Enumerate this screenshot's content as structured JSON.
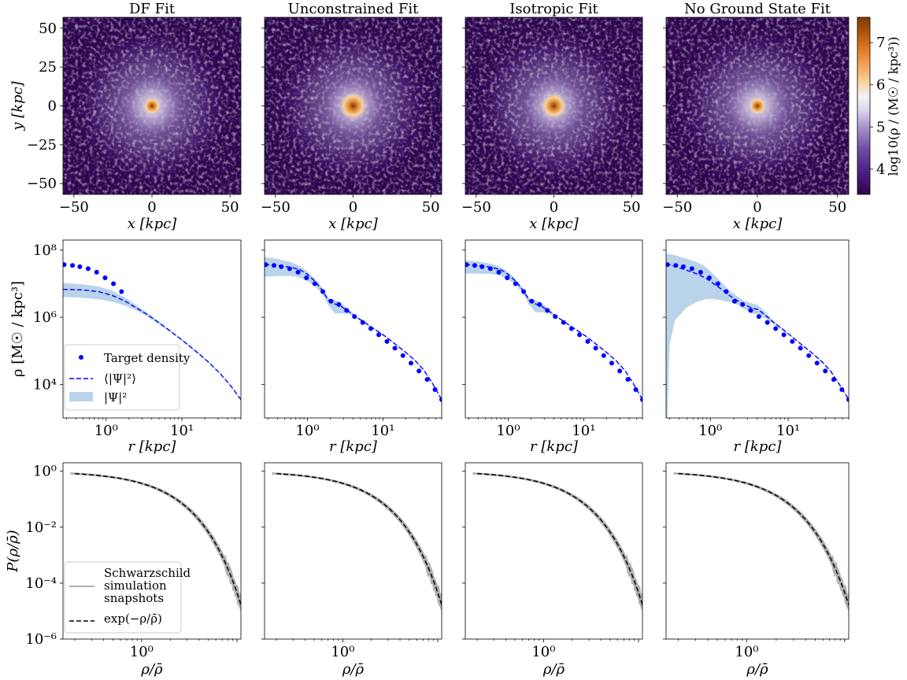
{
  "colors": {
    "target": "#0000ff",
    "mean_line": "#0000ff",
    "band": "#b9d3ea",
    "sim": "#b0b0b0",
    "exp_line": "#000000",
    "cmap": [
      "#2d0550",
      "#4b1d80",
      "#6f4ea6",
      "#a993c9",
      "#dcd7ea",
      "#f2f2f2",
      "#f7cf9b",
      "#f0a050",
      "#d8701a",
      "#a34e0c",
      "#7f3b08"
    ]
  },
  "panel_titles": [
    "DF Fit",
    "Unconstrained Fit",
    "Isotropic Fit",
    "No Ground State Fit"
  ],
  "chart_data": [
    {
      "type": "heatmap",
      "row": "density_maps",
      "titles": [
        "DF Fit",
        "Unconstrained Fit",
        "Isotropic Fit",
        "No Ground State Fit"
      ],
      "xlabel": "x [kpc]",
      "ylabel": "y [kpc]",
      "xlim": [
        -57,
        57
      ],
      "ylim": [
        -57,
        57
      ],
      "xticks": [
        -50,
        0,
        50
      ],
      "xtick_labels": [
        "−50",
        "0",
        "50"
      ],
      "yticks": [
        50,
        25,
        0,
        -25,
        -50
      ],
      "ytick_labels": [
        "50",
        "25",
        "0",
        "−25",
        "−50"
      ],
      "colorbar": {
        "label": "log10(ρ / (M☉ / kpc³))",
        "range": [
          3.4,
          7.6
        ],
        "ticks": [
          4,
          5,
          6,
          7
        ],
        "tick_labels": [
          "4",
          "5",
          "6",
          "7"
        ]
      },
      "core_log_density": [
        6.9,
        7.4,
        7.3,
        6.9
      ]
    },
    {
      "type": "line",
      "row": "density_profiles",
      "xlabel": "r [kpc]",
      "ylabel": "ρ [M☉ / kpc³]",
      "xscale": "log",
      "yscale": "log",
      "xlim": [
        0.27,
        60
      ],
      "ylim": [
        1000,
        200000000
      ],
      "xticks": [
        1,
        10
      ],
      "xtick_labels": [
        "10⁰",
        "10¹"
      ],
      "yticks": [
        100000000,
        1000000,
        10000
      ],
      "ytick_labels": [
        "10⁸",
        "10⁶",
        "10⁴"
      ],
      "legend": {
        "position": "lower-left",
        "entries": [
          "Target density",
          "⟨|Ψ|²⟩",
          "|Ψ|²"
        ]
      },
      "target_density": {
        "r": [
          0.28,
          0.36,
          0.45,
          0.58,
          0.75,
          0.97,
          1.25,
          1.6,
          2.05,
          2.6,
          3.3,
          4.2,
          5.4,
          6.9,
          8.8,
          11.3,
          14.4,
          18.4,
          23.5,
          30,
          38.5,
          49,
          60
        ],
        "rho": [
          37000000,
          35000000,
          32000000,
          28000000,
          22000000,
          15000000,
          10000000,
          5800000,
          3000000,
          2400000,
          1600000,
          1050000,
          700000,
          460000,
          300000,
          190000,
          120000,
          72000,
          43000,
          25000,
          14000,
          7000,
          3500
        ]
      },
      "fits": [
        {
          "name": "DF Fit",
          "target_r_max": 1.7,
          "mean": {
            "r": [
              0.27,
              0.5,
              0.8,
              1.2,
              1.8,
              2.5,
              3.5,
              5,
              7,
              10,
              15,
              22,
              32,
              45,
              60
            ],
            "rho": [
              6800000,
              6500000,
              5800000,
              4500000,
              3000000,
              1900000,
              1200000,
              680000,
              390000,
              210000,
              100000,
              48000,
              21000,
              8500,
              3500
            ]
          },
          "band_upper": {
            "r": [
              0.27,
              0.5,
              0.8,
              1.2,
              1.8,
              2.5,
              3.5,
              5,
              7,
              10,
              15,
              22,
              32,
              45,
              60
            ],
            "rho": [
              10500000,
              9500000,
              8200000,
              6200000,
              3800000,
              2300000,
              1350000,
              740000,
              410000,
              220000,
              105000,
              50000,
              22000,
              8800,
              3600
            ]
          },
          "band_lower": {
            "r": [
              0.27,
              0.5,
              0.8,
              1.2,
              1.8,
              2.5,
              3.5,
              5,
              7,
              10,
              15,
              22,
              32,
              45,
              60
            ],
            "rho": [
              4000000,
              3800000,
              3400000,
              2900000,
              2200000,
              1600000,
              1050000,
              620000,
              370000,
              200000,
              96000,
              46000,
              20000,
              8200,
              3400
            ]
          }
        },
        {
          "name": "Unconstrained Fit",
          "target_r_max": 60,
          "mean": {
            "r": [
              0.27,
              0.4,
              0.6,
              0.8,
              1.0,
              1.3,
              1.6,
              1.9,
              2.3,
              2.8,
              3.5,
              4.5,
              6,
              8,
              11,
              15,
              20,
              27,
              35,
              45,
              60
            ],
            "rho": [
              37000000,
              35000000,
              31000000,
              26000000,
              19000000,
              11000000,
              6000000,
              3200000,
              2500000,
              2100000,
              1500000,
              1000000,
              650000,
              420000,
              260000,
              150000,
              90000,
              50000,
              26000,
              11000,
              3500
            ]
          },
          "band_upper": {
            "r": [
              0.27,
              0.4,
              0.6,
              0.8,
              1.0,
              1.3,
              1.6,
              1.9,
              2.3,
              2.8,
              3.5,
              4.5,
              6,
              8,
              11,
              15,
              20,
              27,
              35,
              45,
              60
            ],
            "rho": [
              62000000,
              55000000,
              44000000,
              33000000,
              23000000,
              13000000,
              7000000,
              3800000,
              3300000,
              2700000,
              1700000,
              1080000,
              690000,
              440000,
              270000,
              155000,
              93000,
              52000,
              27000,
              11500,
              3600
            ]
          },
          "band_lower": {
            "r": [
              0.27,
              0.4,
              0.6,
              0.8,
              1.0,
              1.3,
              1.6,
              1.9,
              2.3,
              2.8,
              3.5,
              4.5,
              6,
              8,
              11,
              15,
              20,
              27,
              35,
              45,
              60
            ],
            "rho": [
              16000000,
              17000000,
              17000000,
              15000000,
              12000000,
              8000000,
              4500000,
              2300000,
              1300000,
              1300000,
              1250000,
              920000,
              610000,
              400000,
              250000,
              145000,
              87000,
              48000,
              25000,
              10500,
              3400
            ]
          }
        },
        {
          "name": "Isotropic Fit",
          "target_r_max": 60,
          "mean": {
            "r": [
              0.27,
              0.4,
              0.6,
              0.8,
              1.0,
              1.3,
              1.6,
              1.9,
              2.3,
              2.8,
              3.5,
              4.5,
              6,
              8,
              11,
              15,
              20,
              27,
              35,
              45,
              60
            ],
            "rho": [
              37000000,
              35000000,
              31000000,
              26000000,
              19000000,
              11000000,
              6000000,
              3200000,
              2500000,
              2100000,
              1500000,
              1000000,
              650000,
              420000,
              260000,
              150000,
              90000,
              50000,
              26000,
              11000,
              3500
            ]
          },
          "band_upper": {
            "r": [
              0.27,
              0.4,
              0.6,
              0.8,
              1.0,
              1.3,
              1.6,
              1.9,
              2.3,
              2.8,
              3.5,
              4.5,
              6,
              8,
              11,
              15,
              20,
              27,
              35,
              45,
              60
            ],
            "rho": [
              50000000,
              46000000,
              39000000,
              31000000,
              22000000,
              12500000,
              6800000,
              3700000,
              3200000,
              2650000,
              1650000,
              1060000,
              680000,
              435000,
              268000,
              153000,
              92000,
              51000,
              26500,
              11300,
              3550
            ]
          },
          "band_lower": {
            "r": [
              0.27,
              0.4,
              0.6,
              0.8,
              1.0,
              1.3,
              1.6,
              1.9,
              2.3,
              2.8,
              3.5,
              4.5,
              6,
              8,
              11,
              15,
              20,
              27,
              35,
              45,
              60
            ],
            "rho": [
              20000000,
              20000000,
              19500000,
              17000000,
              13500000,
              8500000,
              4800000,
              2400000,
              1400000,
              1400000,
              1280000,
              940000,
              620000,
              405000,
              252000,
              147000,
              88000,
              49000,
              25500,
              10700,
              3450
            ]
          }
        },
        {
          "name": "No Ground State Fit",
          "target_r_max": 60,
          "mean": {
            "r": [
              0.27,
              0.35,
              0.5,
              0.7,
              0.9,
              1.1,
              1.4,
              1.8,
              2.3,
              2.8,
              3.4,
              4.1,
              5,
              6.5,
              8.5,
              11,
              15,
              20,
              27,
              35,
              45,
              60
            ],
            "rho": [
              40000000,
              33000000,
              25000000,
              19000000,
              14000000,
              10000000,
              6800000,
              4300000,
              3000000,
              2300000,
              1900000,
              1700000,
              1200000,
              700000,
              440000,
              270000,
              150000,
              88000,
              48000,
              25000,
              10500,
              3500
            ]
          },
          "band_upper": {
            "r": [
              0.27,
              0.35,
              0.5,
              0.7,
              0.9,
              1.1,
              1.4,
              1.8,
              2.3,
              2.8,
              3.4,
              4.1,
              5,
              6.5,
              8.5,
              11,
              15,
              20,
              27,
              35,
              45,
              60
            ],
            "rho": [
              80000000,
              70000000,
              55000000,
              42000000,
              30000000,
              19000000,
              11000000,
              6000000,
              4000000,
              3000000,
              2600000,
              2300000,
              1500000,
              780000,
              470000,
              280000,
              155000,
              91000,
              50000,
              26000,
              11000,
              3600
            ]
          },
          "band_lower": {
            "r": [
              0.27,
              0.28,
              0.29,
              0.3,
              0.35,
              0.5,
              0.7,
              0.9,
              1.1,
              1.4,
              1.8,
              2.3,
              2.8,
              3.4,
              4.1,
              5,
              6.5,
              8.5,
              11,
              15,
              20,
              27,
              35,
              45,
              60
            ],
            "rho": [
              1000,
              1000,
              10000,
              150000,
              800000,
              2000000,
              3000000,
              3500000,
              3500000,
              3200000,
              2800000,
              2300000,
              1700000,
              1300000,
              1200000,
              950000,
              620000,
              410000,
              260000,
              145000,
              85000,
              46000,
              24000,
              10000,
              3400
            ]
          }
        }
      ]
    },
    {
      "type": "line",
      "row": "density_pdf",
      "xlabel": "ρ/ρ̄",
      "ylabel": "P(ρ/ρ̄)",
      "xscale": "log",
      "yscale": "log",
      "xlim": [
        0.15,
        11
      ],
      "ylim": [
        1e-06,
        2
      ],
      "xticks": [
        1
      ],
      "xtick_labels": [
        "10⁰"
      ],
      "yticks": [
        1,
        0.01,
        0.0001,
        1e-06
      ],
      "ytick_labels": [
        "10⁰",
        "10⁻²",
        "10⁻⁴",
        "10⁻⁶"
      ],
      "legend": {
        "position": "lower-left",
        "entries": [
          "Schwarzschild simulation snapshots",
          "exp(−ρ/ρ̄)"
        ]
      },
      "exp_curve": {
        "function": "exp(-x)",
        "x_min": 0.2,
        "y_min": 1e-06
      },
      "simulation_snapshots": {
        "count": 5,
        "x_min": 0.18,
        "scatter_onset": 7.5
      }
    }
  ]
}
